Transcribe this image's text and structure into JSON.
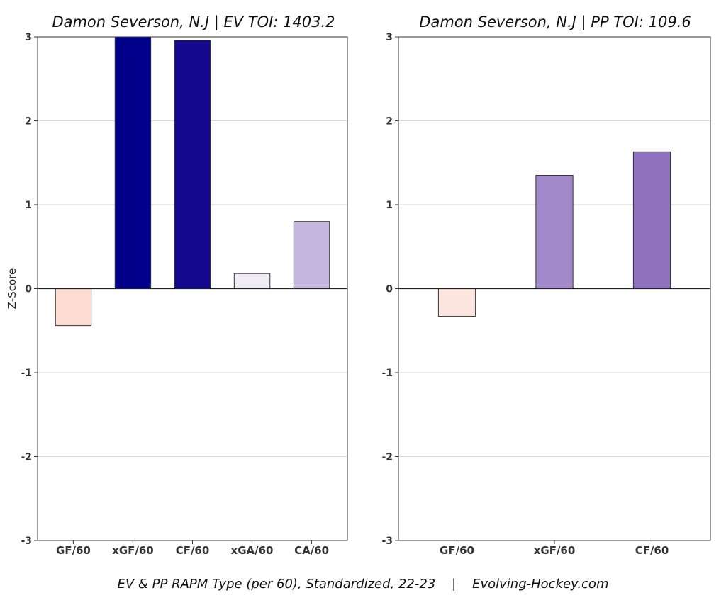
{
  "footer": "EV & PP RAPM Type (per 60), Standardized, 22-23    |    Evolving-Hockey.com",
  "chart_data": [
    {
      "type": "bar",
      "title": "Damon Severson, N.J  |  EV TOI: 1403.2",
      "ylabel": "Z-Score",
      "ylim": [
        -3,
        3
      ],
      "yticks": [
        "3",
        "2",
        "1",
        "0",
        "-1",
        "-2",
        "-3"
      ],
      "grid": true,
      "categories": [
        "GF/60",
        "xGF/60",
        "CF/60",
        "xGA/60",
        "CA/60"
      ],
      "values": [
        -0.44,
        3.0,
        2.96,
        0.18,
        0.8
      ],
      "colors": [
        "#fddcd2",
        "#00008b",
        "#13088e",
        "#f0ecf6",
        "#c6b7e0"
      ]
    },
    {
      "type": "bar",
      "title": "Damon Severson, N.J  |  PP TOI: 109.6",
      "ylabel": "",
      "ylim": [
        -3,
        3
      ],
      "yticks": [
        "3",
        "2",
        "1",
        "0",
        "-1",
        "-2",
        "-3"
      ],
      "grid": true,
      "categories": [
        "GF/60",
        "xGF/60",
        "CF/60"
      ],
      "values": [
        -0.33,
        1.35,
        1.63
      ],
      "colors": [
        "#fde5e0",
        "#a38bcb",
        "#8e72c0"
      ]
    }
  ]
}
